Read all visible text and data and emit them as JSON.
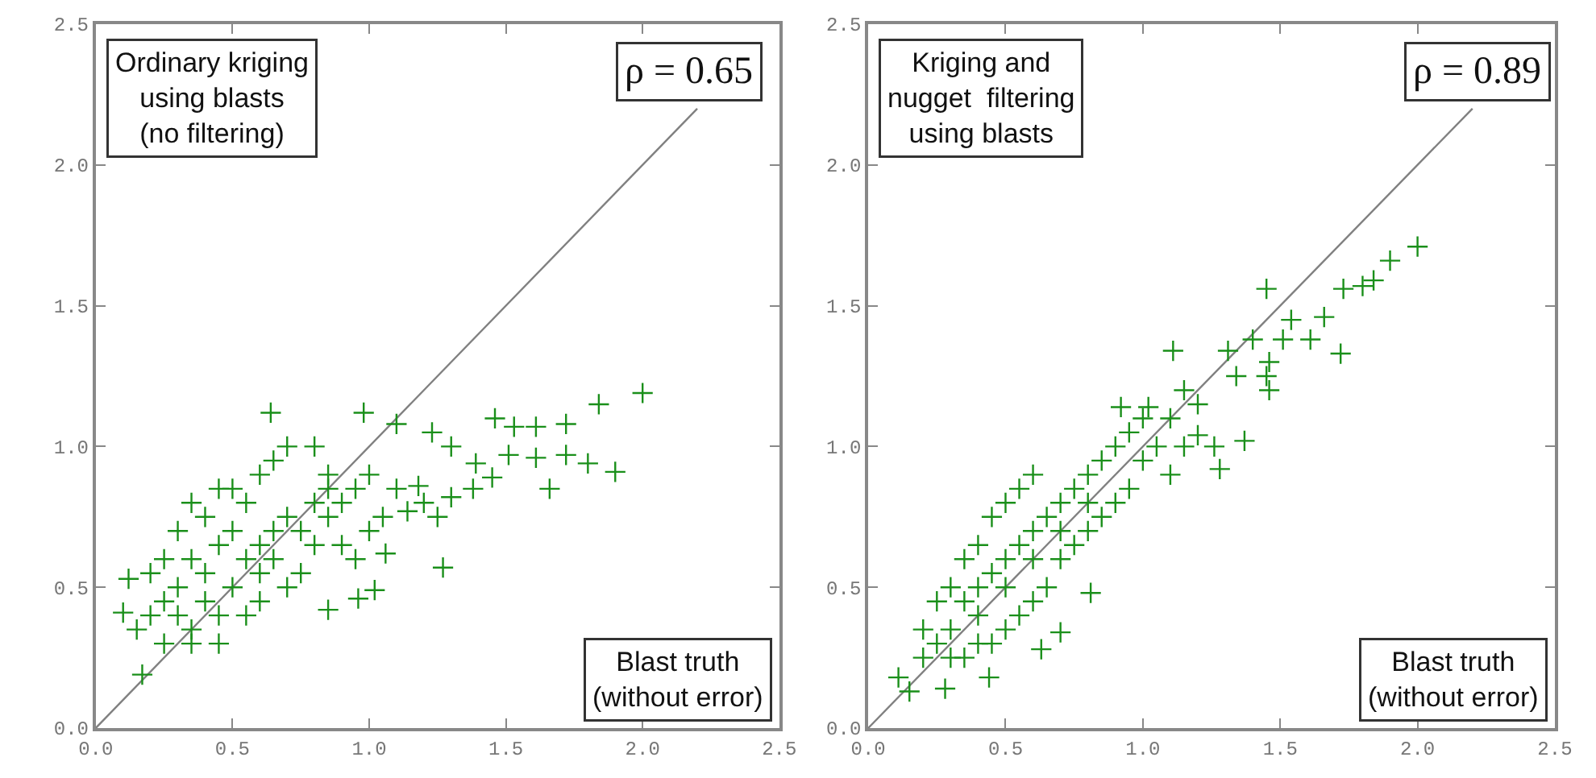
{
  "chart_data": [
    {
      "type": "scatter",
      "xlim": [
        0,
        2.5
      ],
      "ylim": [
        0,
        2.5
      ],
      "xticks": [
        {
          "value": 0,
          "label": "0.0"
        },
        {
          "value": 0.5,
          "label": "0.5"
        },
        {
          "value": 1,
          "label": "1.0"
        },
        {
          "value": 1.5,
          "label": "1.5"
        },
        {
          "value": 2,
          "label": "2.0"
        },
        {
          "value": 2.5,
          "label": "2.5"
        }
      ],
      "yticks": [
        {
          "value": 0,
          "label": "0.0"
        },
        {
          "value": 0.5,
          "label": "0.5"
        },
        {
          "value": 1,
          "label": "1.0"
        },
        {
          "value": 1.5,
          "label": "1.5"
        },
        {
          "value": 2,
          "label": "2.0"
        },
        {
          "value": 2.5,
          "label": "2.5"
        }
      ],
      "grid": false,
      "annotations": [
        "Ordinary kriging\nusing blasts\n(no filtering)",
        "ρ = 0.65",
        "Blast truth\n(without error)"
      ],
      "series": [
        {
          "type": "line",
          "marker": "none",
          "color": "#808080",
          "x": [
            0,
            2.2
          ],
          "values": [
            0,
            2.2
          ]
        },
        {
          "marker": "cross",
          "color": "#1a8f1a",
          "x": [
            0.64,
            2.0,
            1.84,
            1.9,
            1.8,
            1.72,
            1.61,
            1.66,
            1.72,
            1.61,
            1.53,
            1.46,
            1.51,
            1.39,
            1.3,
            1.23,
            1.45,
            1.38,
            1.27,
            1.1,
            0.98,
            0.17,
            0.1,
            0.85,
            1.02,
            0.96,
            1.18,
            1.14,
            1.06,
            0.3,
            0.35,
            0.4,
            0.45,
            0.5,
            0.55,
            0.6,
            0.65,
            0.7,
            0.75,
            0.8,
            0.85,
            0.9,
            0.95,
            0.4,
            0.45,
            0.35,
            0.3,
            0.25,
            0.2,
            0.15,
            0.5,
            0.55,
            0.6,
            0.5,
            0.65,
            0.7,
            0.8,
            0.85,
            0.9,
            1.0,
            1.05,
            1.2,
            1.25,
            1.3,
            1.0,
            0.75,
            0.7,
            0.6,
            0.55,
            0.45,
            0.35,
            0.25,
            0.4,
            0.35,
            0.45,
            0.3,
            0.25,
            0.2,
            0.12,
            0.6,
            0.65,
            0.8,
            0.95,
            1.1,
            0.85
          ],
          "values": [
            1.12,
            1.19,
            1.15,
            0.91,
            0.94,
            0.97,
            0.96,
            0.85,
            1.08,
            1.07,
            1.07,
            1.1,
            0.97,
            0.94,
            1.0,
            1.05,
            0.89,
            0.85,
            0.57,
            1.08,
            1.12,
            0.19,
            0.41,
            0.42,
            0.49,
            0.46,
            0.86,
            0.77,
            0.62,
            0.5,
            0.6,
            0.55,
            0.65,
            0.7,
            0.6,
            0.65,
            0.7,
            0.75,
            0.7,
            0.8,
            0.75,
            0.8,
            0.85,
            0.45,
            0.4,
            0.35,
            0.4,
            0.45,
            0.4,
            0.35,
            0.5,
            0.8,
            0.9,
            0.85,
            0.95,
            1.0,
            1.0,
            0.9,
            0.65,
            0.7,
            0.75,
            0.8,
            0.75,
            0.82,
            0.9,
            0.55,
            0.5,
            0.45,
            0.4,
            0.3,
            0.3,
            0.3,
            0.75,
            0.8,
            0.85,
            0.7,
            0.6,
            0.55,
            0.53,
            0.55,
            0.6,
            0.65,
            0.6,
            0.85,
            0.85
          ]
        }
      ]
    },
    {
      "type": "scatter",
      "xlim": [
        0,
        2.5
      ],
      "ylim": [
        0,
        2.5
      ],
      "xticks": [
        {
          "value": 0,
          "label": "0.0"
        },
        {
          "value": 0.5,
          "label": "0.5"
        },
        {
          "value": 1,
          "label": "1.0"
        },
        {
          "value": 1.5,
          "label": "1.5"
        },
        {
          "value": 2,
          "label": "2.0"
        },
        {
          "value": 2.5,
          "label": "2.5"
        }
      ],
      "yticks": [
        {
          "value": 0,
          "label": "0.0"
        },
        {
          "value": 0.5,
          "label": "0.5"
        },
        {
          "value": 1,
          "label": "1.0"
        },
        {
          "value": 1.5,
          "label": "1.5"
        },
        {
          "value": 2,
          "label": "2.0"
        },
        {
          "value": 2.5,
          "label": "2.5"
        }
      ],
      "grid": false,
      "annotations": [
        "Kriging and\nnugget  filtering\nusing blasts",
        "ρ = 0.89",
        "Blast truth\n(without error)"
      ],
      "series": [
        {
          "type": "line",
          "marker": "none",
          "color": "#808080",
          "x": [
            0,
            2.2
          ],
          "values": [
            0,
            2.2
          ]
        },
        {
          "marker": "cross",
          "color": "#1a8f1a",
          "x": [
            2.0,
            1.9,
            1.84,
            1.8,
            1.73,
            1.66,
            1.61,
            1.72,
            1.54,
            1.51,
            1.45,
            1.4,
            1.46,
            1.45,
            1.46,
            1.34,
            1.31,
            1.11,
            1.37,
            1.28,
            1.26,
            1.2,
            0.11,
            0.15,
            0.28,
            0.44,
            0.63,
            0.81,
            0.7,
            0.92,
            1.02,
            0.3,
            0.35,
            0.4,
            0.45,
            0.5,
            0.55,
            0.6,
            0.65,
            0.7,
            0.75,
            0.8,
            0.85,
            0.9,
            0.95,
            1.0,
            1.05,
            1.1,
            1.15,
            1.2,
            1.0,
            0.95,
            0.9,
            0.85,
            0.8,
            0.75,
            0.7,
            0.65,
            0.6,
            0.55,
            0.5,
            0.45,
            0.4,
            0.35,
            0.3,
            0.25,
            0.2,
            0.25,
            0.3,
            0.35,
            0.4,
            0.45,
            0.5,
            0.55,
            0.6,
            0.2,
            0.6,
            0.5,
            0.4,
            0.7,
            0.8,
            1.1,
            1.15
          ],
          "values": [
            1.71,
            1.66,
            1.59,
            1.57,
            1.56,
            1.46,
            1.38,
            1.33,
            1.45,
            1.38,
            1.56,
            1.38,
            1.3,
            1.25,
            1.2,
            1.25,
            1.34,
            1.34,
            1.02,
            0.92,
            1.0,
            1.04,
            0.18,
            0.13,
            0.14,
            0.18,
            0.28,
            0.48,
            0.34,
            1.14,
            1.14,
            0.35,
            0.45,
            0.5,
            0.55,
            0.6,
            0.65,
            0.7,
            0.75,
            0.8,
            0.85,
            0.9,
            0.95,
            1.0,
            1.05,
            1.1,
            1.0,
            1.1,
            1.2,
            1.15,
            0.95,
            0.85,
            0.8,
            0.75,
            0.7,
            0.65,
            0.6,
            0.5,
            0.45,
            0.4,
            0.35,
            0.3,
            0.3,
            0.25,
            0.25,
            0.3,
            0.25,
            0.45,
            0.5,
            0.6,
            0.65,
            0.75,
            0.8,
            0.85,
            0.9,
            0.35,
            0.6,
            0.5,
            0.4,
            0.7,
            0.8,
            0.9,
            1.0
          ]
        }
      ]
    }
  ]
}
